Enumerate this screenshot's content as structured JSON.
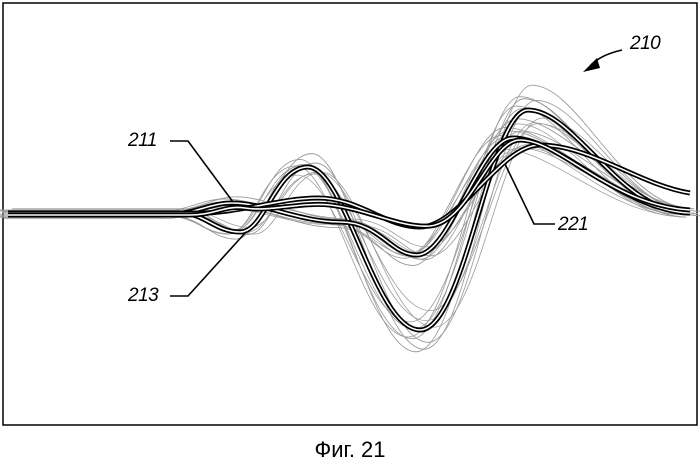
{
  "figure": {
    "caption": "Фиг. 21",
    "labels": {
      "overall": "210",
      "waveform_a": "211",
      "waveform_b": "213",
      "waveform_c": "221"
    }
  },
  "colors": {
    "stroke": "#000000",
    "background_traces": "#9a9a9a"
  }
}
